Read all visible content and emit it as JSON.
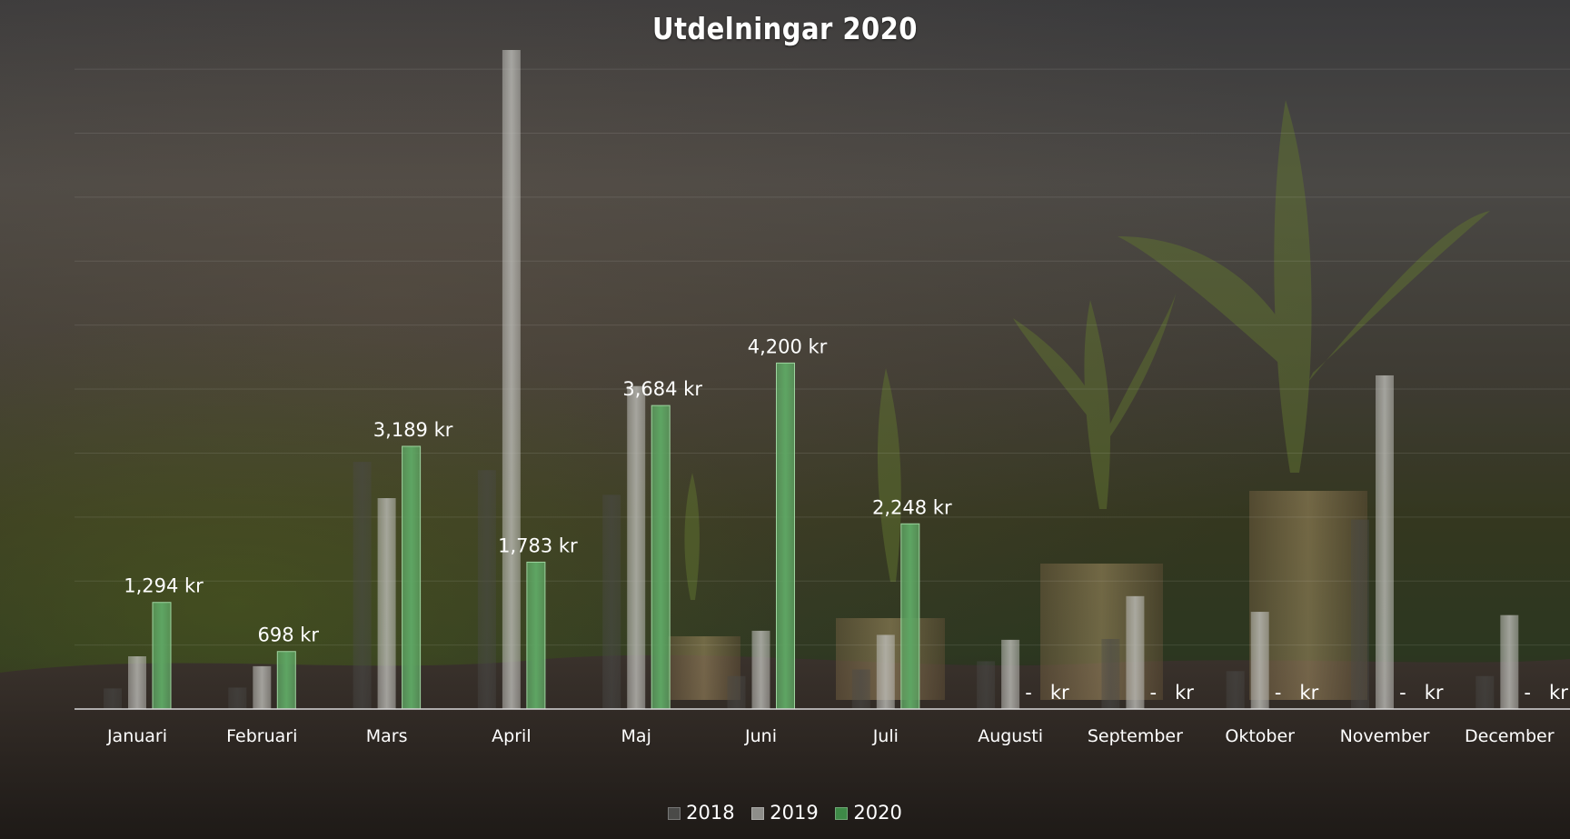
{
  "chart_data": {
    "type": "bar",
    "title": "Utdelningar 2020",
    "xlabel": "",
    "ylabel": "",
    "ylim": [
      0,
      8000
    ],
    "grid": true,
    "legend_position": "bottom",
    "categories": [
      "Januari",
      "Februari",
      "Mars",
      "April",
      "Maj",
      "Juni",
      "Juli",
      "Augusti",
      "September",
      "Oktober",
      "November",
      "December"
    ],
    "series": [
      {
        "name": "2018",
        "color": "#4a4a48",
        "values": [
          250,
          260,
          3000,
          2900,
          2600,
          400,
          480,
          580,
          850,
          460,
          2300,
          400
        ]
      },
      {
        "name": "2019",
        "color": "#bdbdb8",
        "values": [
          640,
          520,
          2560,
          8000,
          3920,
          950,
          900,
          840,
          1370,
          1180,
          4050,
          1140
        ]
      },
      {
        "name": "2020",
        "color": "#5ea563",
        "values": [
          1294,
          698,
          3189,
          1783,
          3684,
          4200,
          2248,
          0,
          0,
          0,
          0,
          0
        ],
        "labels": [
          "1,294 kr",
          "698 kr",
          "3,189 kr",
          "1,783 kr",
          "3,684 kr",
          "4,200 kr",
          "2,248 kr",
          " -   kr",
          " -   kr",
          " -   kr",
          " -   kr",
          " -   kr"
        ]
      }
    ]
  }
}
